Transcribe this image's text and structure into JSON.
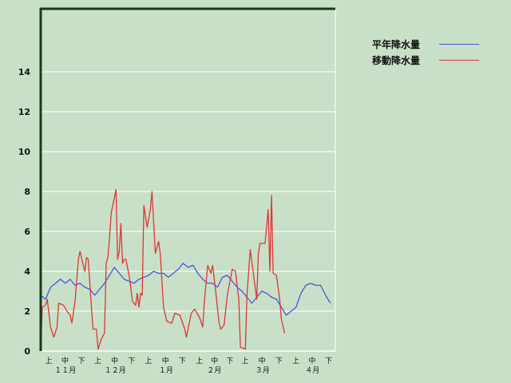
{
  "chart_data": {
    "type": "line",
    "title": "",
    "xlabel": "",
    "ylabel": "",
    "ylim": [
      0,
      17
    ],
    "yticks": [
      "0",
      "2",
      "4",
      "6",
      "8",
      "10",
      "12",
      "14"
    ],
    "grid": true,
    "legend_placement": "right-top",
    "x_months": [
      {
        "label": "１１月",
        "dekads": [
          "上",
          "中",
          "下"
        ]
      },
      {
        "label": "１２月",
        "dekads": [
          "上",
          "中",
          "下"
        ]
      },
      {
        "label": "１月",
        "dekads": [
          "上",
          "中",
          "下"
        ]
      },
      {
        "label": "２月",
        "dekads": [
          "上",
          "中",
          "下"
        ]
      },
      {
        "label": "３月",
        "dekads": [
          "上",
          "中",
          "下"
        ]
      },
      {
        "label": "４月",
        "dekads": [
          "上",
          "中",
          "下"
        ]
      }
    ],
    "series": [
      {
        "name": "平年降水量",
        "color": "#4a55dd",
        "x": [
          "11/01",
          "11/04",
          "11/07",
          "11/10",
          "11/13",
          "11/16",
          "11/19",
          "11/22",
          "11/25",
          "11/28",
          "12/01",
          "12/04",
          "12/07",
          "12/10",
          "12/13",
          "12/16",
          "12/19",
          "12/22",
          "12/25",
          "12/28",
          "12/31",
          "01/03",
          "01/06",
          "01/09",
          "01/12",
          "01/15",
          "01/18",
          "01/21",
          "01/24",
          "01/27",
          "01/30",
          "02/02",
          "02/05",
          "02/08",
          "02/11",
          "02/14",
          "02/17",
          "02/20",
          "02/23",
          "02/26",
          "03/01",
          "03/04",
          "03/07",
          "03/10",
          "03/13",
          "03/16",
          "03/19",
          "03/22",
          "03/25",
          "03/28",
          "03/31",
          "04/03",
          "04/06",
          "04/09",
          "04/12",
          "04/15",
          "04/18",
          "04/21",
          "04/24",
          "04/27"
        ],
        "values": [
          2.8,
          2.6,
          3.2,
          3.4,
          3.6,
          3.4,
          3.6,
          3.3,
          3.4,
          3.2,
          3.1,
          2.8,
          3.1,
          3.4,
          3.8,
          4.2,
          3.9,
          3.6,
          3.5,
          3.4,
          3.6,
          3.7,
          3.8,
          4.0,
          3.9,
          3.9,
          3.7,
          3.9,
          4.1,
          4.4,
          4.2,
          4.3,
          3.9,
          3.6,
          3.4,
          3.4,
          3.2,
          3.7,
          3.8,
          3.5,
          3.2,
          3.0,
          2.7,
          2.4,
          2.7,
          3.0,
          2.9,
          2.7,
          2.6,
          2.2,
          1.8,
          2.0,
          2.2,
          2.9,
          3.3,
          3.4,
          3.3,
          3.3,
          2.8,
          2.4
        ]
      },
      {
        "name": "移動降水量",
        "color": "#e03535",
        "x": [
          "11/01",
          "11/02",
          "11/04",
          "11/05",
          "11/07",
          "11/09",
          "11/11",
          "11/12",
          "11/15",
          "11/17",
          "11/19",
          "11/20",
          "11/22",
          "11/24",
          "11/25",
          "11/27",
          "11/28",
          "11/29",
          "11/30",
          "12/02",
          "12/03",
          "12/05",
          "12/06",
          "12/08",
          "12/10",
          "12/11",
          "12/12",
          "12/13",
          "12/14",
          "12/16",
          "12/17",
          "12/18",
          "12/19",
          "12/20",
          "12/21",
          "12/22",
          "12/23",
          "12/25",
          "12/26",
          "12/27",
          "12/29",
          "12/30",
          "12/31",
          "01/01",
          "01/02",
          "01/03",
          "01/05",
          "01/07",
          "01/08",
          "01/10",
          "01/12",
          "01/13",
          "01/15",
          "01/17",
          "01/20",
          "01/22",
          "01/25",
          "01/28",
          "01/29",
          "02/01",
          "02/03",
          "02/06",
          "02/08",
          "02/09",
          "02/11",
          "02/13",
          "02/14",
          "02/16",
          "02/18",
          "02/19",
          "02/21",
          "02/23",
          "02/26",
          "02/28",
          "03/02",
          "03/03",
          "03/06",
          "03/07",
          "03/09",
          "03/13",
          "03/14",
          "03/15",
          "03/18",
          "03/20",
          "03/21",
          "03/22",
          "03/23",
          "03/25",
          "03/27",
          "03/28",
          "03/30"
        ],
        "values": [
          0,
          2.2,
          2.3,
          2.6,
          1.2,
          0.7,
          1.2,
          2.4,
          2.3,
          2.0,
          1.8,
          1.4,
          2.5,
          4.6,
          5.0,
          4.3,
          4.0,
          4.7,
          4.6,
          2.2,
          1.1,
          1.1,
          0.1,
          0.6,
          0.9,
          4.4,
          4.7,
          5.6,
          6.9,
          7.7,
          8.1,
          4.6,
          5.0,
          6.4,
          4.4,
          4.6,
          4.6,
          3.8,
          3.2,
          2.5,
          2.3,
          2.9,
          2.2,
          2.9,
          2.8,
          7.3,
          6.2,
          7.1,
          8.0,
          4.9,
          5.5,
          4.9,
          2.2,
          1.5,
          1.4,
          1.9,
          1.8,
          1.1,
          0.7,
          1.9,
          2.1,
          1.7,
          1.2,
          2.5,
          4.3,
          3.9,
          4.3,
          2.9,
          1.4,
          1.1,
          1.3,
          2.8,
          4.1,
          4.0,
          2.6,
          0.2,
          0.1,
          2.8,
          5.1,
          2.6,
          4.9,
          5.4,
          5.4,
          7.1,
          4.0,
          7.8,
          3.9,
          3.8,
          2.6,
          1.6,
          0.9
        ]
      }
    ]
  }
}
